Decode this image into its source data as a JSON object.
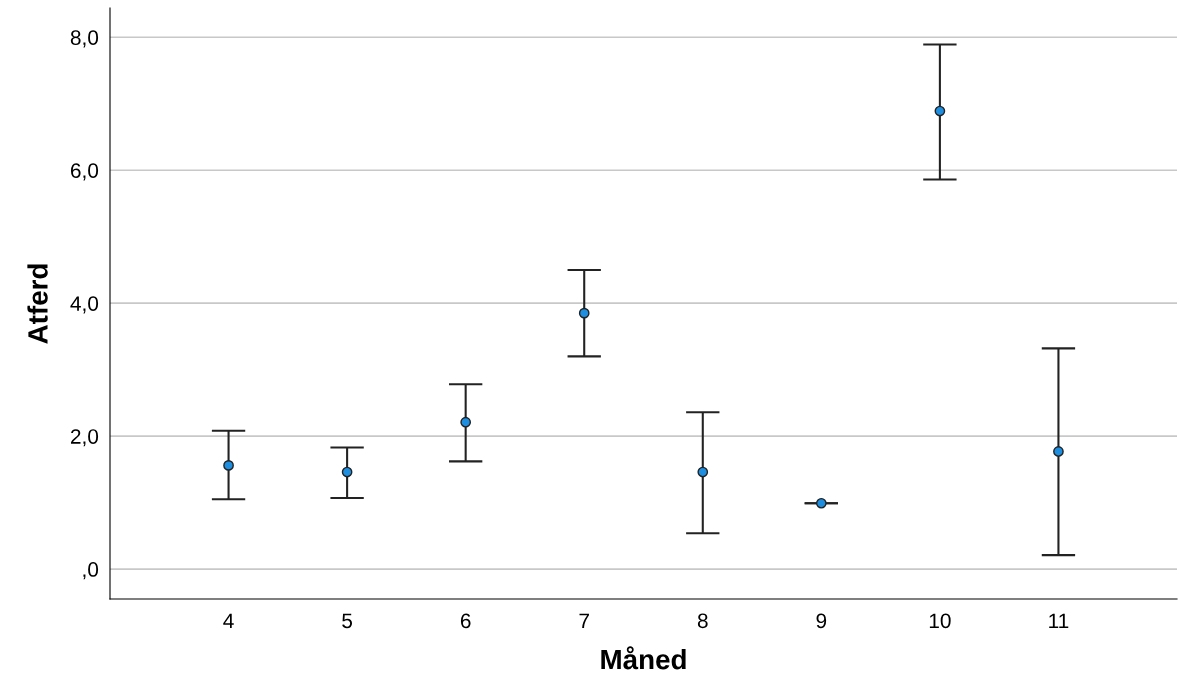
{
  "chart_data": {
    "type": "scatter",
    "xlabel": "Måned",
    "ylabel": "Atferd",
    "categories": [
      "4",
      "5",
      "6",
      "7",
      "8",
      "9",
      "10",
      "11"
    ],
    "values": [
      1.56,
      1.46,
      2.21,
      3.85,
      1.46,
      0.99,
      6.89,
      1.77
    ],
    "errors": [
      [
        1.05,
        2.08
      ],
      [
        1.07,
        1.83
      ],
      [
        1.62,
        2.78
      ],
      [
        3.2,
        4.5
      ],
      [
        0.54,
        2.36
      ],
      [
        0.99,
        0.99
      ],
      [
        5.86,
        7.89
      ],
      [
        0.21,
        3.32
      ]
    ],
    "color": "#1e8fe0",
    "marker": "circle",
    "grid": "y",
    "ylim": [
      -0.45,
      8.44
    ],
    "yticks": [
      {
        "value": 0,
        "label": ",0"
      },
      {
        "value": 2,
        "label": "2,0"
      },
      {
        "value": 4,
        "label": "4,0"
      },
      {
        "value": 6,
        "label": "6,0"
      },
      {
        "value": 8,
        "label": "8,0"
      }
    ]
  }
}
